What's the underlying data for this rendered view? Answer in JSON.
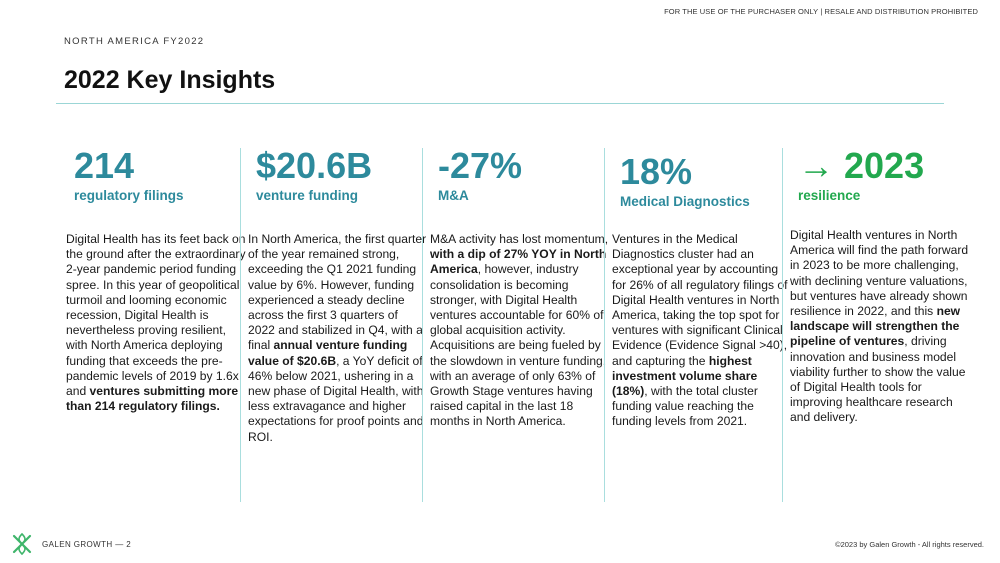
{
  "header": {
    "disclaimer": "FOR THE USE OF THE PURCHASER ONLY | RESALE AND DISTRIBUTION PROHIBITED",
    "region": "NORTH AMERICA FY2022",
    "title": "2022 Key Insights"
  },
  "colors": {
    "teal": "#2d8a9c",
    "green": "#22a84e",
    "divider": "#a9dede"
  },
  "columns": [
    {
      "big": "214",
      "sub": "regulatory filings",
      "p1": "Digital Health has its feet back on the ground after the extraordinary 2-year pandemic period funding spree. In this year of geopolitical turmoil and looming economic recession, Digital Health is nevertheless proving resilient, with North America deploying funding that exceeds the pre-pandemic levels of 2019 by 1.6x and ",
      "b1": "ventures submitting more than 214 regulatory filings."
    },
    {
      "big": "$20.6B",
      "sub": "venture funding",
      "p1": "In North America, the first quarter of the year remained strong, exceeding the Q1 2021 funding value by 6%. However, funding experienced a steady decline across the first 3 quarters of 2022 and stabilized in Q4, with a final ",
      "b1": "annual venture funding value of $20.6B",
      "p2": ", a YoY deficit of 46% below 2021, ushering in a new phase of Digital Health, with less extravagance and higher expectations for proof points and ROI."
    },
    {
      "big": "-27%",
      "sub": "M&A",
      "p1": "M&A activity has lost momentum, ",
      "b1": "with a dip of 27% YOY in North America",
      "p2": ", however, industry consolidation is becoming stronger, with Digital Health ventures accountable for 60% of global acquisition activity. Acquisitions are being fueled by the slowdown in venture funding, with an average of only 63% of Growth Stage ventures having raised capital in the last 18 months in North America."
    },
    {
      "big": "18%",
      "sub": "Medical Diagnostics",
      "p1": "Ventures in the Medical Diagnostics cluster had an exceptional year by accounting for 26% of all regulatory filings of Digital Health ventures in North America, taking the top spot for ventures with significant Clinical Evidence (Evidence Signal >40), and capturing the ",
      "b1": "highest investment volume share (18%)",
      "p2": ", with the total cluster funding value reaching the funding levels from 2021."
    },
    {
      "big": "→ 2023",
      "sub": "resilience",
      "p1": "Digital Health ventures in North America will find the path forward in 2023 to be more challenging, with declining venture valuations, but ventures have already shown resilience in 2022, and this ",
      "b1": "new landscape will strengthen the pipeline of ventures",
      "p2": ", driving innovation and business model viability further to show the value of Digital Health tools for improving healthcare research and delivery."
    }
  ],
  "footer": {
    "brand": "GALEN GROWTH  —  2",
    "copyright": "©2023 by Galen Growth  - All rights reserved.",
    "logo_icon": "galen-growth-logo"
  }
}
